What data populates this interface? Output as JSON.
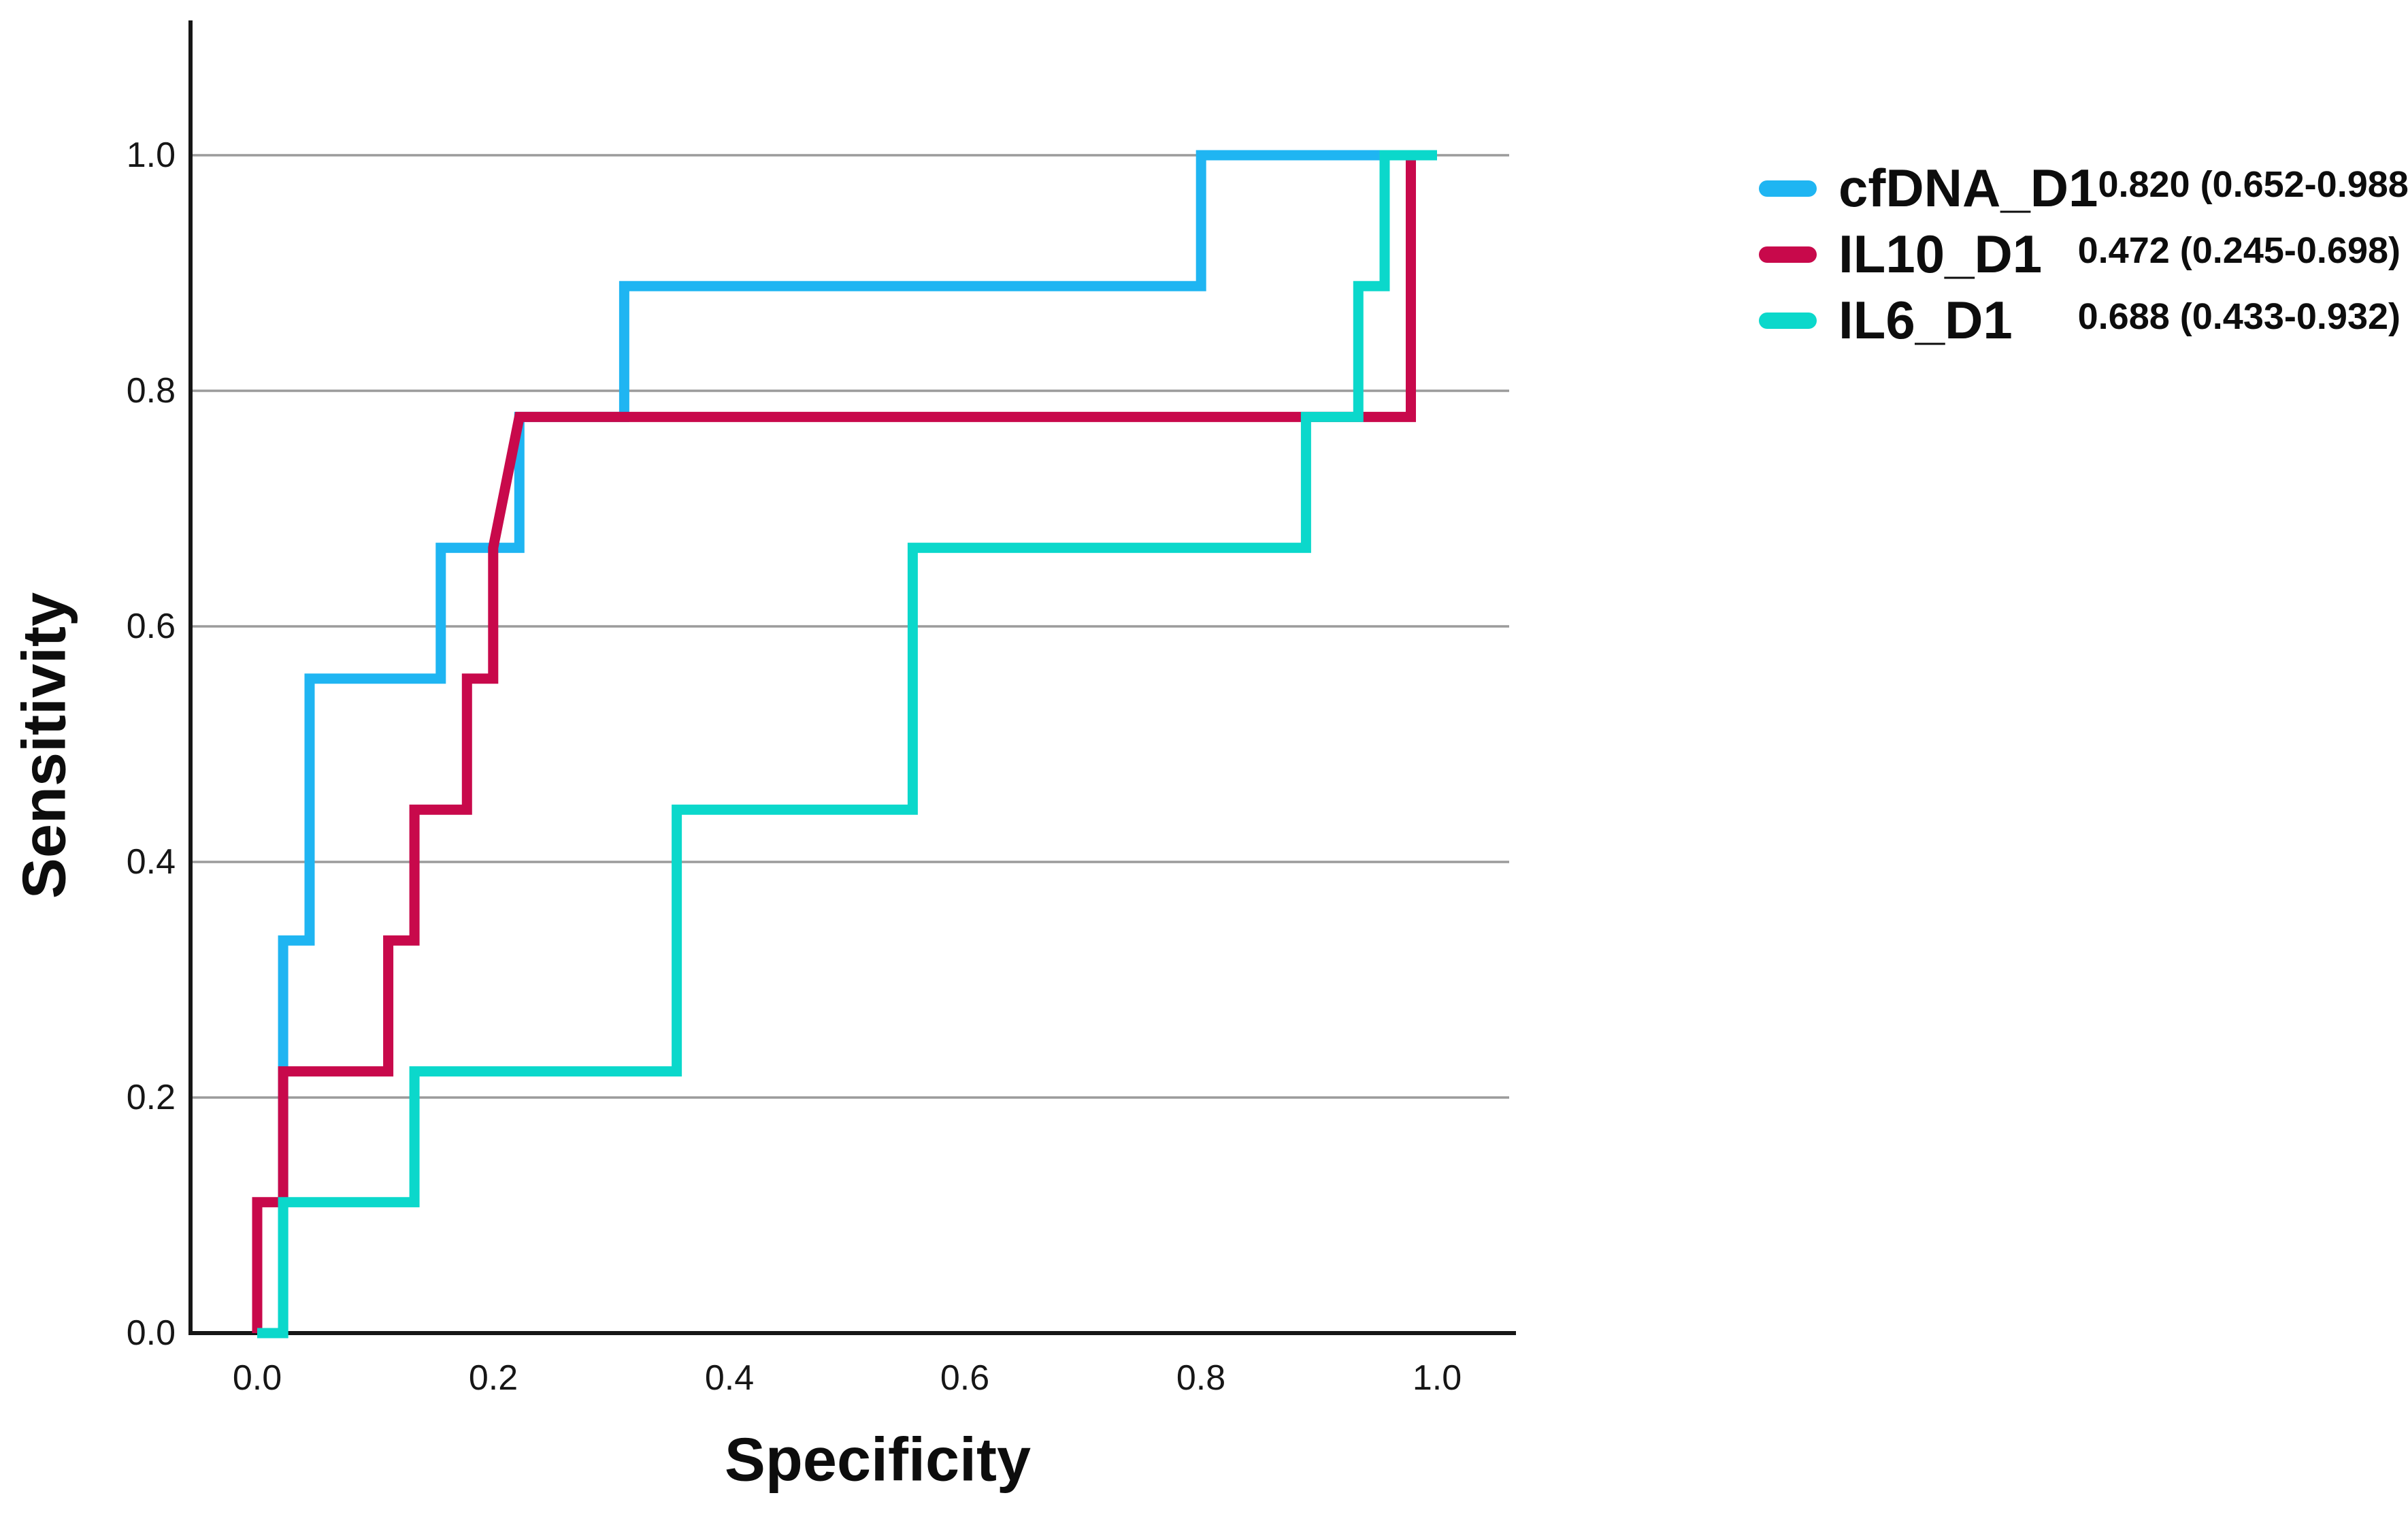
{
  "figure": {
    "background": "#ffffff"
  },
  "chart_data": {
    "type": "line",
    "subtype": "roc-step-curves",
    "title": "",
    "xlabel": "Specificity",
    "ylabel": "Sensitivity",
    "xlim": [
      0,
      1
    ],
    "ylim": [
      0,
      1
    ],
    "grid": "horizontal-gridlines-only",
    "gridline_color": "#9b9b9b",
    "axis_color": "#161616",
    "tick_color": "#161616",
    "legend_position": "top-right",
    "x_ticks": [
      "0.0",
      "0.2",
      "0.4",
      "0.6",
      "0.8",
      "1.0"
    ],
    "y_ticks": [
      "0.0",
      "0.2",
      "0.4",
      "0.6",
      "0.8",
      "1.0"
    ],
    "series": [
      {
        "name": "cfDNA_D1",
        "color": "#1fb5f2",
        "auc": "0.820 (0.652-0.988)",
        "points": [
          [
            0,
            0
          ],
          [
            0.022,
            0
          ],
          [
            0.022,
            0.3333
          ],
          [
            0.0444,
            0.3333
          ],
          [
            0.0444,
            0.5556
          ],
          [
            0.1556,
            0.5556
          ],
          [
            0.1556,
            0.6667
          ],
          [
            0.2222,
            0.6667
          ],
          [
            0.2222,
            0.7778
          ],
          [
            0.3111,
            0.7778
          ],
          [
            0.3111,
            0.8889
          ],
          [
            0.8,
            0.8889
          ],
          [
            0.8,
            1
          ],
          [
            1,
            1
          ]
        ]
      },
      {
        "name": "IL10_D1",
        "color": "#c8094b",
        "auc": "0.472 (0.245-0.698)",
        "points": [
          [
            0,
            0
          ],
          [
            0,
            0.1111
          ],
          [
            0.022,
            0.1111
          ],
          [
            0.022,
            0.2222
          ],
          [
            0.1111,
            0.2222
          ],
          [
            0.1111,
            0.3333
          ],
          [
            0.1333,
            0.3333
          ],
          [
            0.1333,
            0.4444
          ],
          [
            0.1778,
            0.4444
          ],
          [
            0.1778,
            0.5556
          ],
          [
            0.2,
            0.5556
          ],
          [
            0.2,
            0.6667
          ],
          [
            0.2222,
            0.7778
          ],
          [
            0.9778,
            0.7778
          ],
          [
            0.9778,
            1
          ],
          [
            1,
            1
          ]
        ]
      },
      {
        "name": "IL6_D1",
        "color": "#0bd8cb",
        "auc": "0.688 (0.433-0.932)",
        "points": [
          [
            0,
            0
          ],
          [
            0.022,
            0
          ],
          [
            0.022,
            0.1111
          ],
          [
            0.1333,
            0.1111
          ],
          [
            0.1333,
            0.2222
          ],
          [
            0.3556,
            0.2222
          ],
          [
            0.3556,
            0.4444
          ],
          [
            0.5556,
            0.4444
          ],
          [
            0.5556,
            0.6667
          ],
          [
            0.8889,
            0.6667
          ],
          [
            0.8889,
            0.7778
          ],
          [
            0.9333,
            0.7778
          ],
          [
            0.9333,
            0.8889
          ],
          [
            0.9556,
            0.8889
          ],
          [
            0.9556,
            1
          ],
          [
            1,
            1
          ]
        ]
      }
    ]
  }
}
